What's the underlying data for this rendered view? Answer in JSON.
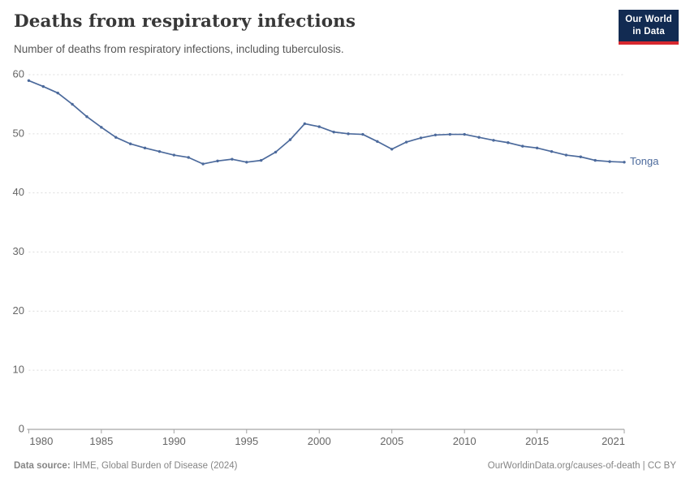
{
  "header": {
    "title": "Deaths from respiratory infections",
    "subtitle": "Number of deaths from respiratory infections, including tuberculosis.",
    "logo": {
      "line1": "Our World",
      "line2": "in Data"
    }
  },
  "chart_data": {
    "type": "line",
    "title": "Deaths from respiratory infections",
    "xlabel": "",
    "ylabel": "",
    "xlim": [
      1980,
      2021
    ],
    "ylim": [
      0,
      60
    ],
    "yticks": [
      0,
      10,
      20,
      30,
      40,
      50,
      60
    ],
    "xticks": [
      1980,
      1985,
      1990,
      1995,
      2000,
      2005,
      2010,
      2015,
      2021
    ],
    "grid": "horizontal-dashed",
    "legend_position": "end-of-line-label",
    "series": [
      {
        "name": "Tonga",
        "color": "#4C6A9C",
        "x": [
          1980,
          1981,
          1982,
          1983,
          1984,
          1985,
          1986,
          1987,
          1988,
          1989,
          1990,
          1991,
          1992,
          1993,
          1994,
          1995,
          1996,
          1997,
          1998,
          1999,
          2000,
          2001,
          2002,
          2003,
          2004,
          2005,
          2006,
          2007,
          2008,
          2009,
          2010,
          2011,
          2012,
          2013,
          2014,
          2015,
          2016,
          2017,
          2018,
          2019,
          2020,
          2021
        ],
        "values": [
          59.0,
          58.0,
          56.9,
          55.0,
          52.9,
          51.1,
          49.4,
          48.3,
          47.6,
          47.0,
          46.4,
          46.0,
          44.9,
          45.4,
          45.7,
          45.2,
          45.5,
          46.9,
          49.0,
          51.7,
          51.2,
          50.3,
          50.0,
          49.9,
          48.7,
          47.4,
          48.6,
          49.3,
          49.8,
          49.9,
          49.9,
          49.4,
          48.9,
          48.5,
          47.9,
          47.6,
          47.0,
          46.4,
          46.1,
          45.5,
          45.3,
          45.2
        ]
      }
    ]
  },
  "footer": {
    "source_label": "Data source:",
    "source_text": " IHME, Global Burden of Disease (2024)",
    "credit": "OurWorldinData.org/causes-of-death | CC BY"
  }
}
